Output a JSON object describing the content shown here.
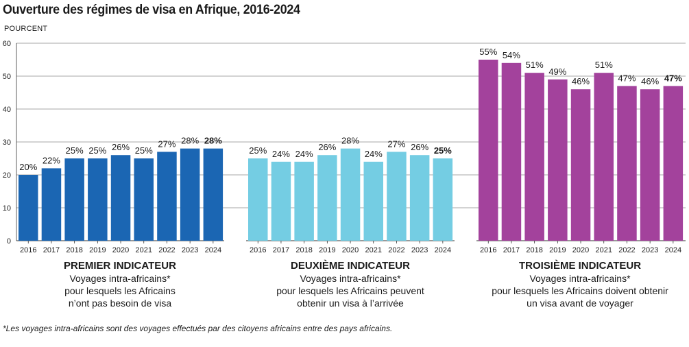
{
  "title": "Ouverture des régimes de visa en Afrique, 2016-2024",
  "unit_label": "POURCENT",
  "footnote": "*Les voyages intra-africains sont des voyages effectués par des citoyens africains entre des pays africains.",
  "chart_data": {
    "type": "bar",
    "ylim": [
      0,
      60
    ],
    "yticks": [
      0,
      10,
      20,
      30,
      40,
      50,
      60
    ],
    "grid": true,
    "colors": [
      "#1b66b3",
      "#74cde3",
      "#a3429c"
    ],
    "groups": [
      {
        "heading": "PREMIER INDICATEUR",
        "caption": [
          "Voyages intra-africains*",
          "pour lesquels les Africains",
          "n’ont pas besoin de visa"
        ],
        "categories": [
          "2016",
          "2017",
          "2018",
          "2019",
          "2020",
          "2021",
          "2022",
          "2023",
          "2024"
        ],
        "values": [
          20,
          22,
          25,
          25,
          26,
          25,
          27,
          28,
          28
        ],
        "labels": [
          "20%",
          "22%",
          "25%",
          "25%",
          "26%",
          "25%",
          "27%",
          "28%",
          "28%"
        ]
      },
      {
        "heading": "DEUXIÈME INDICATEUR",
        "caption": [
          "Voyages intra-africains*",
          "pour lesquels les Africains peuvent",
          "obtenir un visa à l’arrivée"
        ],
        "categories": [
          "2016",
          "2017",
          "2018",
          "2019",
          "2020",
          "2021",
          "2022",
          "2023",
          "2024"
        ],
        "values": [
          25,
          24,
          24,
          26,
          28,
          24,
          27,
          26,
          25
        ],
        "labels": [
          "25%",
          "24%",
          "24%",
          "26%",
          "28%",
          "24%",
          "27%",
          "26%",
          "25%"
        ]
      },
      {
        "heading": "TROISIÈME INDICATEUR",
        "caption": [
          "Voyages intra-africains*",
          "pour lesquels les Africains doivent obtenir",
          "un visa avant de voyager"
        ],
        "categories": [
          "2016",
          "2017",
          "2018",
          "2019",
          "2020",
          "2021",
          "2022",
          "2023",
          "2024"
        ],
        "values": [
          55,
          54,
          51,
          49,
          46,
          51,
          47,
          46,
          47
        ],
        "labels": [
          "55%",
          "54%",
          "51%",
          "49%",
          "46%",
          "51%",
          "47%",
          "46%",
          "47%"
        ]
      }
    ]
  }
}
